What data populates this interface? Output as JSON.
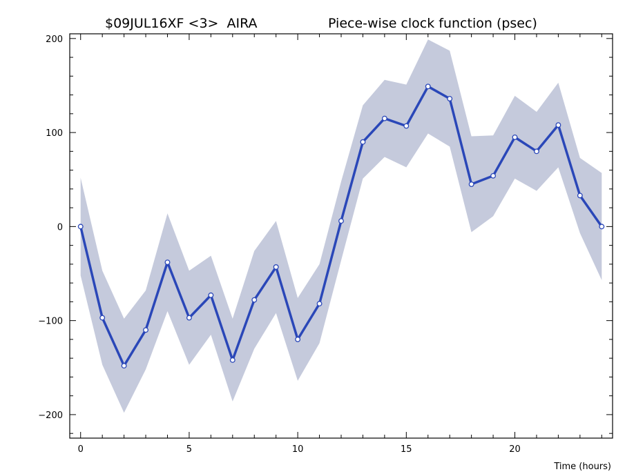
{
  "chart_data": {
    "type": "line",
    "title_left": "$09JUL16XF <3>  AIRA",
    "title_right": "Piece-wise clock function (psec)",
    "xlabel": "Time (hours)",
    "ylabel": "",
    "xlim": [
      -0.5,
      24.5
    ],
    "ylim": [
      -225,
      205
    ],
    "x_ticks": [
      0,
      5,
      10,
      15,
      20
    ],
    "x_tick_labels": [
      "0",
      "5",
      "10",
      "15",
      "20"
    ],
    "y_ticks": [
      -200,
      -100,
      0,
      100,
      200
    ],
    "y_tick_labels": [
      "−200",
      "−100",
      "0",
      "100",
      "200"
    ],
    "grid": false,
    "colors": {
      "line": "#2a47b8",
      "band": "#c5cadc",
      "marker_fill": "#ffffff"
    },
    "x": [
      0,
      1,
      2,
      3,
      4,
      5,
      6,
      7,
      8,
      9,
      10,
      11,
      12,
      13,
      14,
      15,
      16,
      17,
      18,
      19,
      20,
      21,
      22,
      23,
      24
    ],
    "series": [
      {
        "values": [
          0,
          -97,
          -148,
          -110,
          -38,
          -97,
          -73,
          -142,
          -78,
          -43,
          -120,
          -82,
          6,
          90,
          115,
          107,
          149,
          136,
          45,
          54,
          95,
          80,
          108,
          33,
          0
        ],
        "upper": [
          52,
          -47,
          -98,
          -68,
          14,
          -47,
          -31,
          -98,
          -26,
          6,
          -76,
          -40,
          48,
          129,
          156,
          151,
          199,
          187,
          96,
          97,
          139,
          122,
          153,
          73,
          57
        ],
        "lower": [
          -52,
          -147,
          -198,
          -152,
          -90,
          -147,
          -115,
          -186,
          -130,
          -92,
          -164,
          -124,
          -36,
          51,
          74,
          63,
          99,
          85,
          -6,
          11,
          51,
          38,
          63,
          -7,
          -57
        ]
      }
    ]
  }
}
